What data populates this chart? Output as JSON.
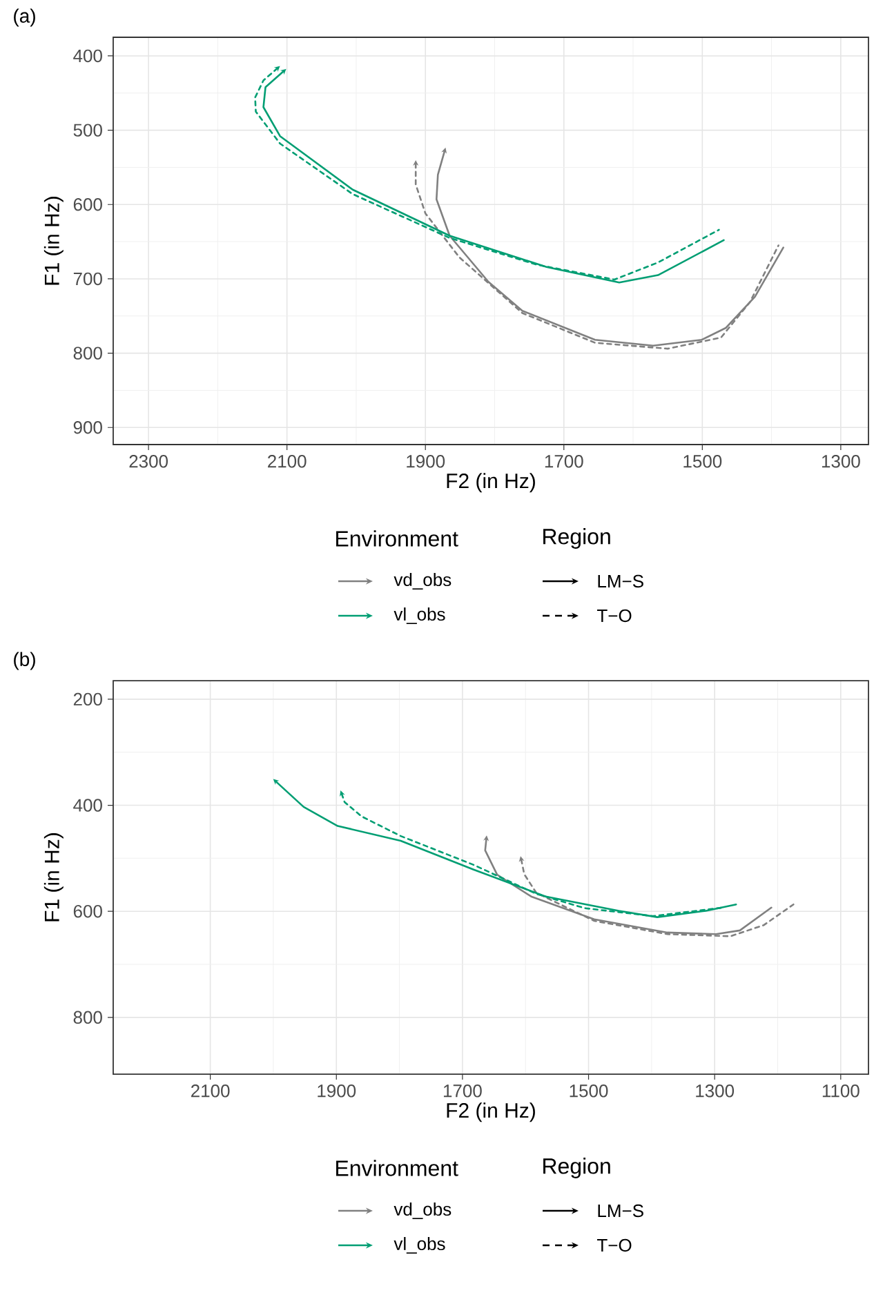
{
  "chart_data": [
    {
      "type": "line",
      "xlabel": "F2 (in Hz)",
      "ylabel": "F1 (in Hz)",
      "legend_title": "Environment",
      "annotations": [
        "(a)",
        "Region",
        "LM−S",
        "T−O"
      ],
      "xlim": [
        2351,
        1260
      ],
      "ylim": [
        923,
        375
      ],
      "xticks": [
        2300,
        2100,
        1900,
        1700,
        1500,
        1300
      ],
      "yticks": [
        400,
        500,
        600,
        700,
        800,
        900
      ],
      "grid": true,
      "legend": "bottom",
      "series": [
        {
          "name": "vd_obs",
          "color": "#808080",
          "line_style": "solid",
          "x": [
            1383,
            1424,
            1466,
            1501,
            1571,
            1655,
            1760,
            1809,
            1865,
            1884,
            1882,
            1872
          ],
          "values": [
            658,
            724,
            766,
            782,
            790,
            782,
            743,
            704,
            642,
            593,
            560,
            527
          ]
        },
        {
          "color": "#808080",
          "line_style": "dashed",
          "x": [
            1390,
            1431,
            1473,
            1550,
            1655,
            1760,
            1851,
            1900,
            1914,
            1914
          ],
          "values": [
            655,
            731,
            779,
            794,
            786,
            746,
            671,
            612,
            573,
            544
          ]
        },
        {
          "name": "vl_obs",
          "color": "#009e73",
          "line_style": "solid",
          "x": [
            1469,
            1564,
            1620,
            1725,
            1865,
            2005,
            2110,
            2134,
            2131,
            2104
          ],
          "values": [
            648,
            695,
            705,
            684,
            642,
            580,
            508,
            469,
            442,
            420
          ]
        },
        {
          "color": "#009e73",
          "line_style": "dashed",
          "x": [
            1476,
            1564,
            1627,
            1739,
            1865,
            2005,
            2110,
            2145,
            2146,
            2134,
            2113
          ],
          "values": [
            634,
            678,
            701,
            681,
            645,
            586,
            518,
            475,
            456,
            433,
            416
          ]
        }
      ]
    },
    {
      "type": "line",
      "xlabel": "F2 (in Hz)",
      "ylabel": "F1 (in Hz)",
      "legend_title": "Environment",
      "annotations": [
        "(b)",
        "Region",
        "LM−S",
        "T−O"
      ],
      "xlim": [
        2254,
        1056
      ],
      "ylim": [
        907,
        165
      ],
      "xticks": [
        2100,
        1900,
        1700,
        1500,
        1300,
        1100
      ],
      "yticks": [
        200,
        400,
        600,
        800
      ],
      "grid": true,
      "legend": "bottom",
      "series": [
        {
          "name": "vd_obs",
          "color": "#808080",
          "line_style": "solid",
          "x": [
            1210,
            1260,
            1298,
            1375,
            1491,
            1591,
            1645,
            1664,
            1662
          ],
          "values": [
            593,
            636,
            643,
            640,
            615,
            572,
            531,
            485,
            462
          ]
        },
        {
          "color": "#808080",
          "line_style": "dashed",
          "x": [
            1175,
            1222,
            1275,
            1375,
            1491,
            1583,
            1602,
            1607
          ],
          "values": [
            587,
            626,
            647,
            643,
            618,
            565,
            530,
            501
          ]
        },
        {
          "name": "vl_obs",
          "color": "#009e73",
          "line_style": "solid",
          "x": [
            1266,
            1314,
            1391,
            1452,
            1568,
            1683,
            1798,
            1898,
            1952,
            1997
          ],
          "values": [
            587,
            599,
            611,
            599,
            572,
            521,
            467,
            439,
            403,
            354
          ]
        },
        {
          "color": "#009e73",
          "line_style": "dashed",
          "x": [
            1287,
            1398,
            1506,
            1583,
            1683,
            1798,
            1860,
            1887,
            1892
          ],
          "values": [
            593,
            609,
            594,
            567,
            512,
            458,
            421,
            394,
            377
          ]
        }
      ]
    }
  ]
}
